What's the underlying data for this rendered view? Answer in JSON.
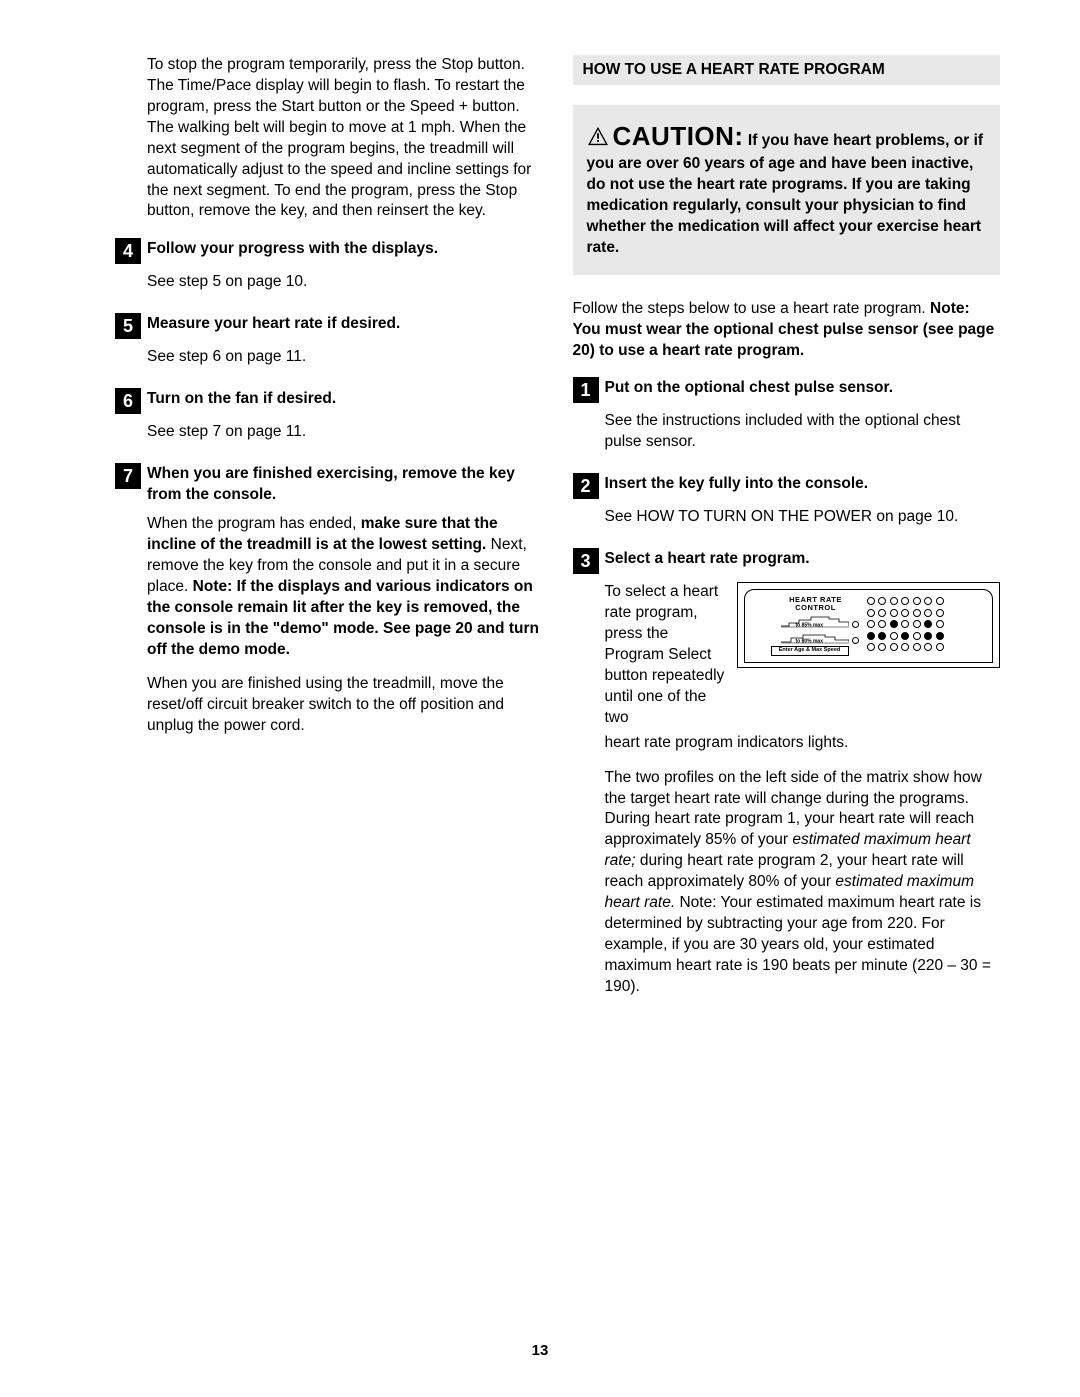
{
  "page_number": "13",
  "left": {
    "intro_para": "To stop the program temporarily, press the Stop button. The Time/Pace display will begin to flash. To restart the program, press the Start button or the Speed + button. The walking belt will begin to move at 1 mph. When the next segment of the program begins, the treadmill will automatically adjust to the speed and incline settings for the next segment. To end the program, press the Stop button, remove the key, and then reinsert the key.",
    "step4_num": "4",
    "step4_title": "Follow your progress with the displays.",
    "step4_body": "See step 5 on page 10.",
    "step5_num": "5",
    "step5_title": "Measure your heart rate if desired.",
    "step5_body": "See step 6 on page 11.",
    "step6_num": "6",
    "step6_title": "Turn on the fan if desired.",
    "step6_body": "See step 7 on page 11.",
    "step7_num": "7",
    "step7_title": "When you are finished exercising, remove the key from the console.",
    "step7_p1_a": "When the program has ended, ",
    "step7_p1_b": "make sure that the incline of the treadmill is at the lowest setting.",
    "step7_p1_c": " Next, remove the key from the console and put it in a secure place. ",
    "step7_p1_d": "Note: If the displays and various indicators on the console remain lit after the key is removed, the console is in the \"demo\" mode. See page 20 and turn off the demo mode.",
    "step7_p2": "When you are finished using the treadmill, move the reset/off circuit breaker switch to the off position and unplug the power cord."
  },
  "right": {
    "section_header": "HOW TO USE A HEART RATE PROGRAM",
    "caution_word": "CAUTION:",
    "caution_text": " If you have heart problems, or if you are over 60 years of age and have been inactive, do not use the heart rate programs. If you are taking medication regularly, consult your physician to find whether the medication will affect your exercise heart rate.",
    "follow_a": "Follow the steps below to use a heart rate program. ",
    "follow_b": "Note: You must wear the optional chest pulse sensor (see page 20) to use a heart rate program.",
    "step1_num": "1",
    "step1_title": "Put on the optional chest pulse sensor.",
    "step1_body": "See the instructions included with the optional chest pulse sensor.",
    "step2_num": "2",
    "step2_title": "Insert the key fully into the console.",
    "step2_body": "See HOW TO TURN ON THE POWER on page 10.",
    "step3_num": "3",
    "step3_title": "Select a heart rate program.",
    "step3_wrap_text": "To select a heart rate program, press the Program Select button repeatedly until one of the two",
    "step3_after": "heart rate program indicators lights.",
    "matrix": {
      "hr_label_1": "HEART RATE",
      "hr_label_2": "CONTROL",
      "profile1_label": "to 85% max",
      "profile2_label": "to 80% max",
      "enter_age": "Enter Age & Max Speed",
      "dot_rows": [
        [
          0,
          0,
          0,
          0,
          0,
          0,
          0
        ],
        [
          0,
          0,
          0,
          0,
          0,
          0,
          0
        ],
        [
          0,
          0,
          1,
          0,
          0,
          1,
          0
        ],
        [
          1,
          1,
          0,
          1,
          0,
          1,
          1
        ],
        [
          0,
          0,
          0,
          0,
          0,
          0,
          0
        ]
      ]
    },
    "step3_p2_a": "The two profiles on the left side of the matrix show how the target heart rate will change during the programs. During heart rate program 1, your heart rate will reach approximately 85% of your ",
    "step3_p2_b": "estimated maximum heart rate;",
    "step3_p2_c": " during heart rate program 2, your heart rate will reach approximately 80% of your ",
    "step3_p2_d": "estimated maximum heart rate.",
    "step3_p2_e": " Note: Your estimated maximum heart rate is determined by subtracting your age from 220. For example, if you are 30 years old, your estimated maximum heart rate is 190 beats per minute (220 – 30 = 190)."
  }
}
